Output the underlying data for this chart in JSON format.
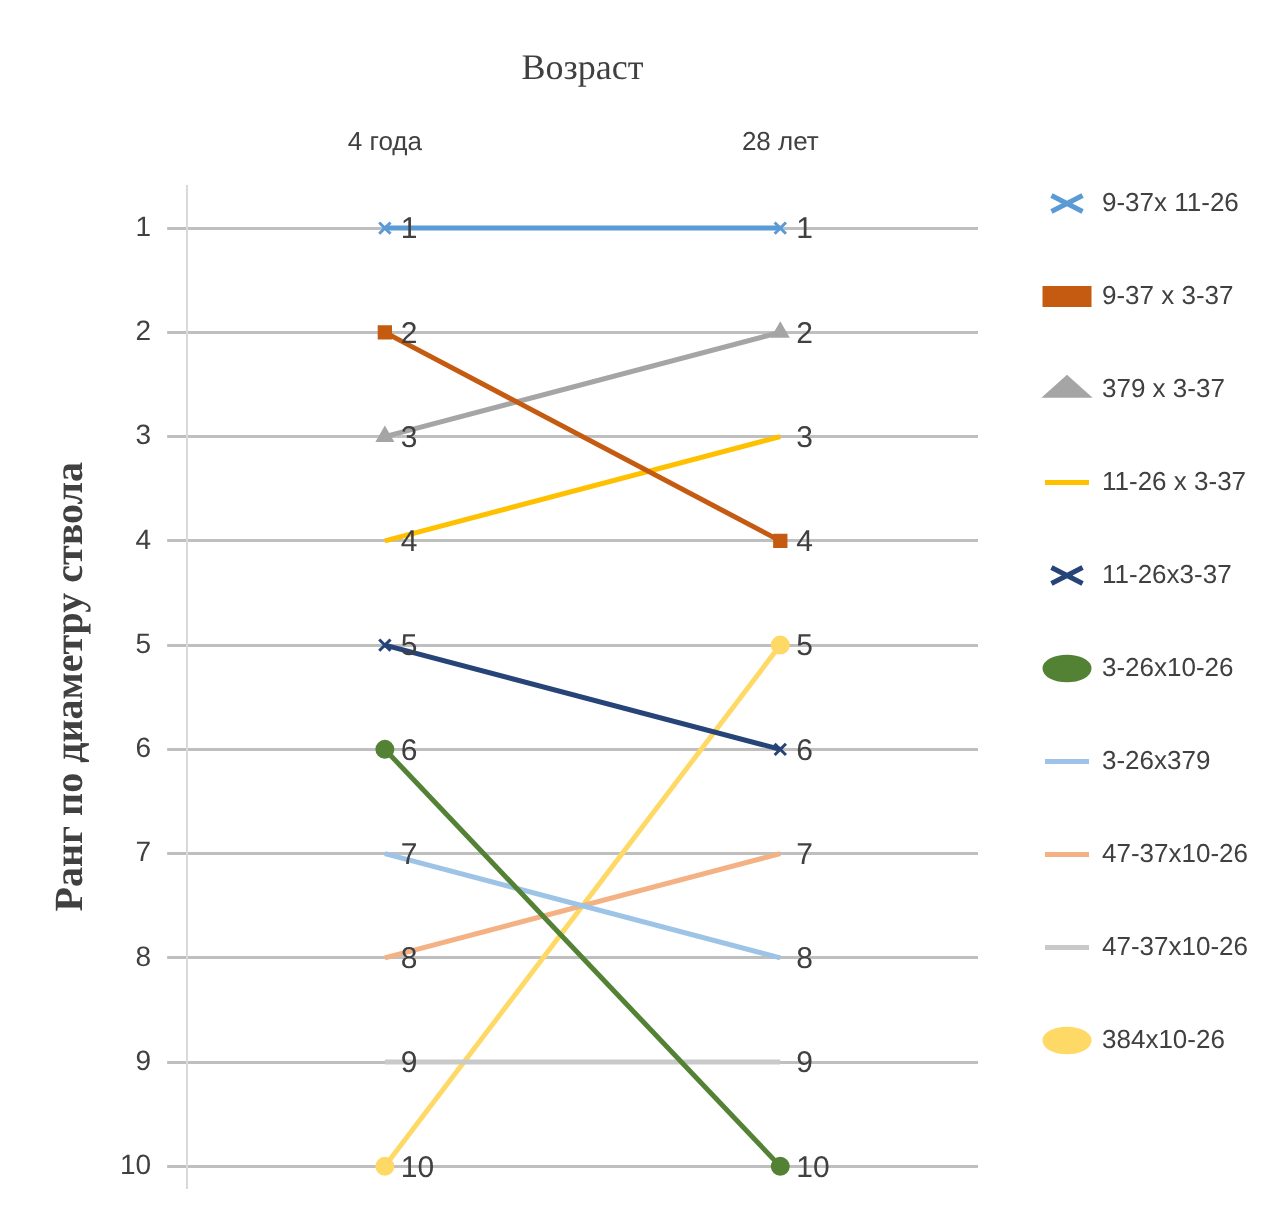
{
  "chart_data": {
    "type": "line",
    "xlabel": "Возраст",
    "ylabel": "Ранг по диаметру ствола",
    "categories": [
      "4 года",
      "28 лет"
    ],
    "series": [
      {
        "name": "9-37х 11-26",
        "color": "#5b9bd5",
        "values": [
          1,
          1
        ],
        "marker": "cross"
      },
      {
        "name": "9-37 х 3-37",
        "color": "#c55a11",
        "values": [
          2,
          4
        ],
        "marker": "square"
      },
      {
        "name": "379 х 3-37",
        "color": "#a5a5a5",
        "values": [
          3,
          2
        ],
        "marker": "triangle"
      },
      {
        "name": "11-26 х 3-37",
        "color": "#ffc000",
        "values": [
          4,
          3
        ],
        "marker": "none"
      },
      {
        "name": "11-26х3-37",
        "color": "#264478",
        "values": [
          5,
          6
        ],
        "marker": "cross"
      },
      {
        "name": "3-26х10-26",
        "color": "#548235",
        "values": [
          6,
          10
        ],
        "marker": "circle"
      },
      {
        "name": "3-26х379",
        "color": "#9dc3e6",
        "values": [
          7,
          8
        ],
        "marker": "none"
      },
      {
        "name": "47-37х10-26",
        "color": "#f4b183",
        "values": [
          8,
          7
        ],
        "marker": "none"
      },
      {
        "name": "47-37х10-26",
        "color": "#c9c9c9",
        "values": [
          9,
          9
        ],
        "marker": "none"
      },
      {
        "name": "384х10-26",
        "color": "#ffd966",
        "values": [
          10,
          5
        ],
        "marker": "circle"
      }
    ],
    "ylim": [
      10.2,
      0.6
    ],
    "yticks": [
      1,
      2,
      3,
      4,
      5,
      6,
      7,
      8,
      9,
      10
    ],
    "grid": "y",
    "legend": "right",
    "data_labels": true
  }
}
